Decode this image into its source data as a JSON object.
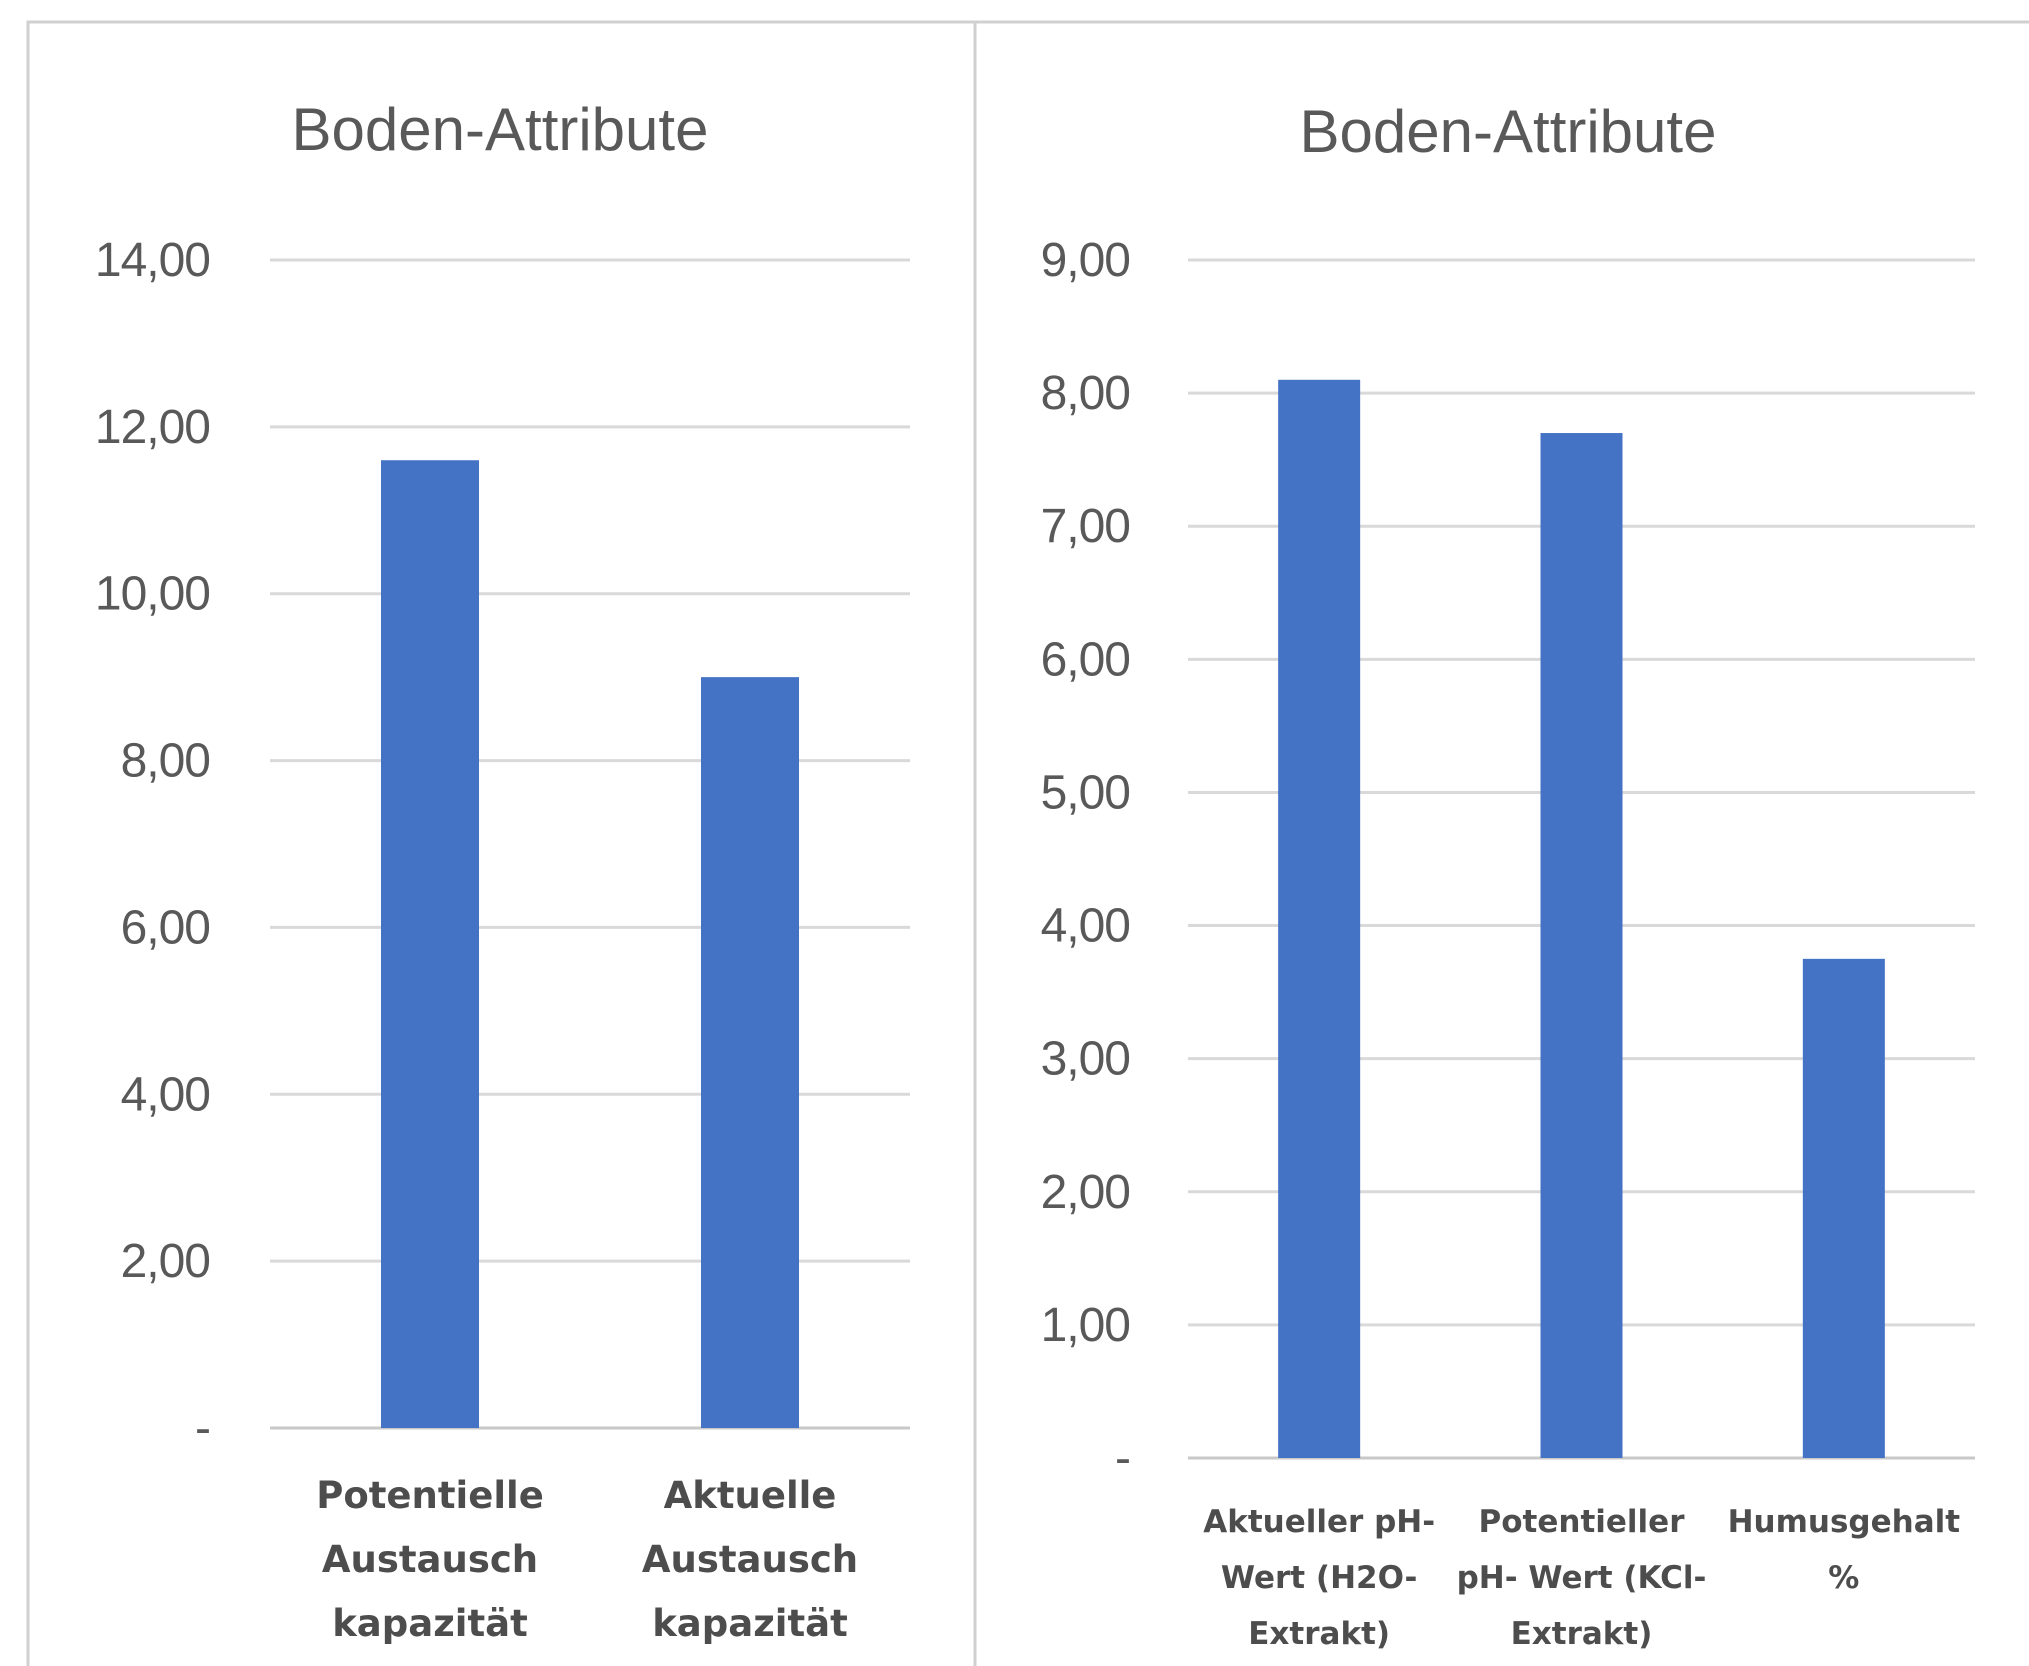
{
  "colors": {
    "bar": "#4472c4",
    "grid": "#d9d9d9",
    "text": "#595959"
  },
  "chart_data": [
    {
      "type": "bar",
      "title": "Boden-Attribute",
      "categories": [
        [
          "Potentielle",
          "Austausch",
          "kapazität"
        ],
        [
          "Aktuelle",
          "Austausch",
          "kapazität"
        ]
      ],
      "values": [
        11.6,
        9.0
      ],
      "ylim": [
        0,
        14
      ],
      "yticks": [
        "-",
        "2,00",
        "4,00",
        "6,00",
        "8,00",
        "10,00",
        "12,00",
        "14,00"
      ],
      "grid": true
    },
    {
      "type": "bar",
      "title": "Boden-Attribute",
      "categories": [
        [
          "Aktueller pH-",
          "Wert (H2O-",
          "Extrakt)"
        ],
        [
          "Potentieller",
          "pH- Wert (KCl-",
          "Extrakt)"
        ],
        [
          "Humusgehalt",
          "%"
        ]
      ],
      "values": [
        8.1,
        7.7,
        3.75
      ],
      "ylim": [
        0,
        9
      ],
      "yticks": [
        "-",
        "1,00",
        "2,00",
        "3,00",
        "4,00",
        "5,00",
        "6,00",
        "7,00",
        "8,00",
        "9,00"
      ],
      "grid": true
    }
  ]
}
